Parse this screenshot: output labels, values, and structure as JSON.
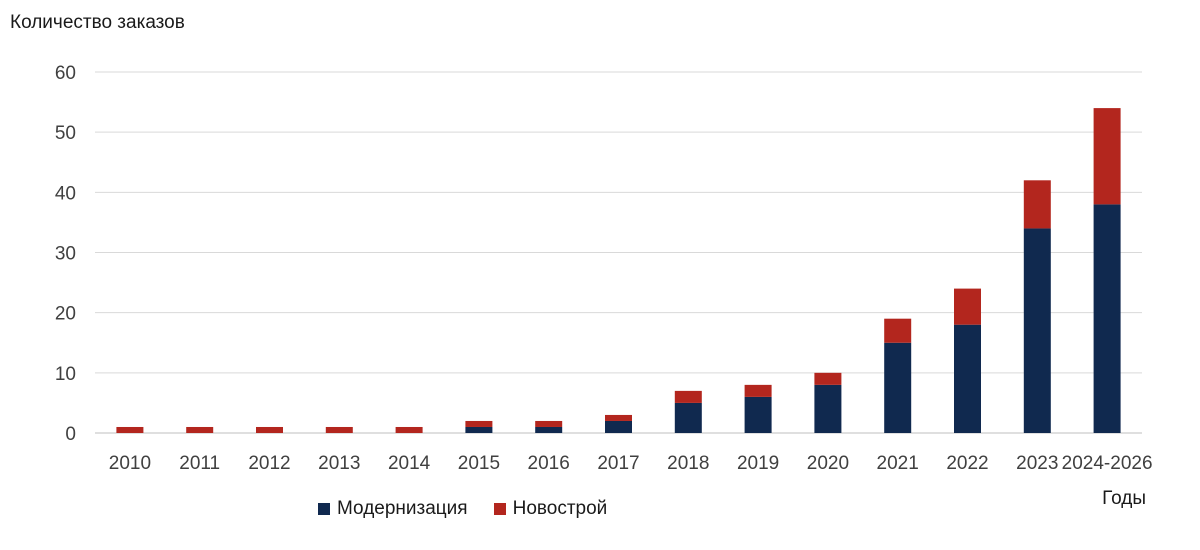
{
  "chart_data": {
    "type": "bar",
    "stacked": true,
    "title": "",
    "ylabel": "Количество заказов",
    "xlabel": "Годы",
    "ylim": [
      0,
      60
    ],
    "yticks": [
      0,
      10,
      20,
      30,
      40,
      50,
      60
    ],
    "grid": true,
    "legend_position": "bottom-left",
    "categories": [
      "2010",
      "2011",
      "2012",
      "2013",
      "2014",
      "2015",
      "2016",
      "2017",
      "2018",
      "2019",
      "2020",
      "2021",
      "2022",
      "2023",
      "2024-2026"
    ],
    "series": [
      {
        "name": "Модернизация",
        "color": "#10294f",
        "values": [
          0,
          0,
          0,
          0,
          0,
          1,
          1,
          2,
          5,
          6,
          8,
          15,
          18,
          34,
          38
        ]
      },
      {
        "name": "Новострой",
        "color": "#b3261e",
        "values": [
          1,
          1,
          1,
          1,
          1,
          1,
          1,
          1,
          2,
          2,
          2,
          4,
          6,
          8,
          16
        ]
      }
    ]
  }
}
